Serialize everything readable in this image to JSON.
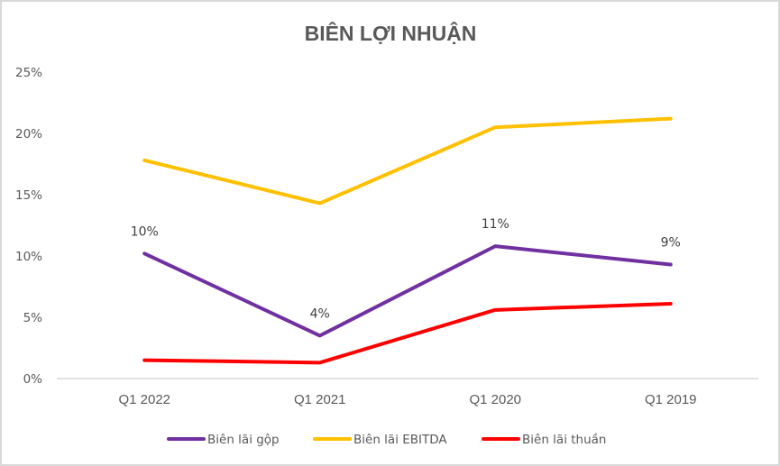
{
  "chart_data": {
    "type": "line",
    "title": "BIÊN LỢI NHUẬN",
    "xlabel": "",
    "ylabel": "",
    "categories": [
      "Q1 2022",
      "Q1 2021",
      "Q1 2020",
      "Q1 2019"
    ],
    "ylim": [
      0,
      25
    ],
    "yticks": [
      0,
      5,
      10,
      15,
      20,
      25
    ],
    "ytick_labels": [
      "0%",
      "5%",
      "10%",
      "15%",
      "20%",
      "25%"
    ],
    "grid": false,
    "legend_position": "bottom",
    "series": [
      {
        "name": "Biên lãi gộp",
        "color": "#7030A0",
        "values": [
          10.2,
          3.5,
          10.8,
          9.3
        ],
        "data_labels": [
          "10%",
          "4%",
          "11%",
          "9%"
        ]
      },
      {
        "name": "Biên lãi EBITDA",
        "color": "#FFC000",
        "values": [
          17.8,
          14.3,
          20.5,
          21.2
        ],
        "data_labels": null
      },
      {
        "name": "Biên lãi thuần",
        "color": "#FF0000",
        "values": [
          1.5,
          1.3,
          5.6,
          6.1
        ],
        "data_labels": null
      }
    ]
  }
}
